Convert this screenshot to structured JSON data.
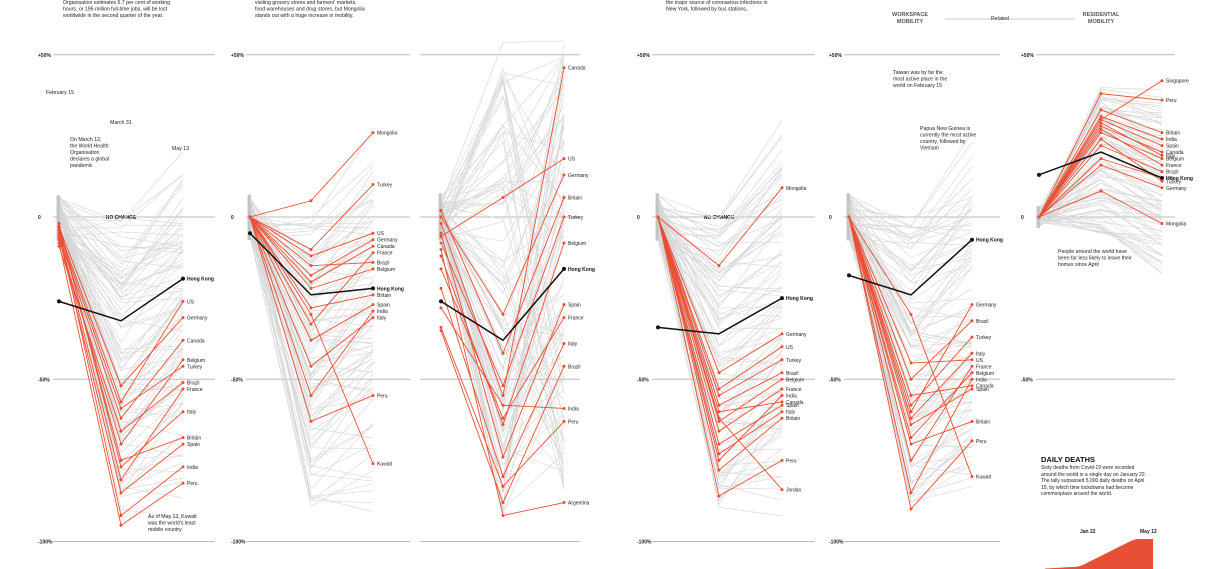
{
  "chart_data": [
    {
      "type": "line",
      "x": [
        "February 15",
        "March 31",
        "May 13"
      ],
      "ylim": [
        -100,
        50
      ],
      "yticks": [
        "+50%",
        "0",
        "-50%",
        "-100%"
      ],
      "zero_label": "NO CHANGE",
      "highlight": {
        "name": "Hong Kong",
        "values": [
          -26,
          -32,
          -19
        ]
      },
      "series": [
        {
          "name": "US",
          "values": [
            -4,
            -57,
            -26
          ]
        },
        {
          "name": "Germany",
          "values": [
            -3,
            -52,
            -31
          ]
        },
        {
          "name": "Canada",
          "values": [
            -6,
            -62,
            -38
          ]
        },
        {
          "name": "Belgium",
          "values": [
            -7,
            -70,
            -44
          ]
        },
        {
          "name": "Turkey",
          "values": [
            -5,
            -59,
            -46
          ]
        },
        {
          "name": "Brazil",
          "values": [
            -9,
            -66,
            -51
          ]
        },
        {
          "name": "France",
          "values": [
            -5,
            -81,
            -53
          ]
        },
        {
          "name": "Italy",
          "values": [
            -2,
            -77,
            -60
          ]
        },
        {
          "name": "Britain",
          "values": [
            -3,
            -75,
            -68
          ]
        },
        {
          "name": "Spain",
          "values": [
            -6,
            -85,
            -70
          ]
        },
        {
          "name": "India",
          "values": [
            -4,
            -92,
            -77
          ]
        },
        {
          "name": "Peru",
          "values": [
            -8,
            -95,
            -82
          ]
        }
      ]
    },
    {
      "type": "line",
      "x": [
        "February 15",
        "March 31",
        "May 13"
      ],
      "ylim": [
        -100,
        50
      ],
      "yticks": [
        "+50%",
        "0",
        "-50%",
        "-100%"
      ],
      "highlight": {
        "name": "Hong Kong",
        "values": [
          -5,
          -24,
          -22
        ]
      },
      "series": [
        {
          "name": "Mongolia",
          "values": [
            0,
            5,
            26
          ]
        },
        {
          "name": "Turkey",
          "values": [
            0,
            -10,
            10
          ]
        },
        {
          "name": "US",
          "values": [
            0,
            -12,
            -5
          ]
        },
        {
          "name": "Germany",
          "values": [
            0,
            -18,
            -7
          ]
        },
        {
          "name": "Canada",
          "values": [
            0,
            -20,
            -9
          ]
        },
        {
          "name": "France",
          "values": [
            0,
            -33,
            -11
          ]
        },
        {
          "name": "Brazil",
          "values": [
            0,
            -15,
            -14
          ]
        },
        {
          "name": "Belgium",
          "values": [
            0,
            -22,
            -16
          ]
        },
        {
          "name": "Britain",
          "values": [
            0,
            -28,
            -24
          ]
        },
        {
          "name": "Spain",
          "values": [
            0,
            -38,
            -27
          ]
        },
        {
          "name": "India",
          "values": [
            0,
            -55,
            -29
          ]
        },
        {
          "name": "Italy",
          "values": [
            0,
            -46,
            -31
          ]
        },
        {
          "name": "Peru",
          "values": [
            0,
            -63,
            -55
          ]
        },
        {
          "name": "Kuwait",
          "values": [
            0,
            -30,
            -76
          ]
        }
      ]
    },
    {
      "type": "line",
      "x": [
        "February 15",
        "March 31",
        "May 13"
      ],
      "ylim": [
        -100,
        50
      ],
      "highlight": {
        "name": "Hong Kong",
        "values": [
          -26,
          -38,
          -16
        ]
      },
      "series": [
        {
          "name": "Canada",
          "values": [
            -2,
            -55,
            46
          ]
        },
        {
          "name": "US",
          "values": [
            -6,
            6,
            18
          ]
        },
        {
          "name": "Germany",
          "values": [
            0,
            -30,
            13
          ]
        },
        {
          "name": "Britain",
          "values": [
            2,
            -42,
            6
          ]
        },
        {
          "name": "Turkey",
          "values": [
            -8,
            -52,
            0
          ]
        },
        {
          "name": "Belgium",
          "values": [
            -12,
            -64,
            -8
          ]
        },
        {
          "name": "Spain",
          "values": [
            -5,
            -74,
            -27
          ]
        },
        {
          "name": "France",
          "values": [
            -16,
            -62,
            -31
          ]
        },
        {
          "name": "Italy",
          "values": [
            -22,
            -80,
            -39
          ]
        },
        {
          "name": "Brazil",
          "values": [
            -35,
            -88,
            -46
          ]
        },
        {
          "name": "India",
          "values": [
            -28,
            -58,
            -59
          ]
        },
        {
          "name": "Peru",
          "values": [
            -34,
            -83,
            -63
          ]
        },
        {
          "name": "Argentina",
          "values": [
            -10,
            -92,
            -88
          ]
        }
      ]
    },
    {
      "type": "line",
      "x": [
        "February 15",
        "March 31",
        "May 13"
      ],
      "ylim": [
        -100,
        50
      ],
      "yticks": [
        "+50%",
        "0",
        "-50%",
        "-100%"
      ],
      "zero_label": "NO CHANGE",
      "highlight": {
        "name": "Hong Kong",
        "values": [
          -34,
          -36,
          -25
        ]
      },
      "series": [
        {
          "name": "Mongolia",
          "values": [
            0,
            -15,
            9
          ]
        },
        {
          "name": "Germany",
          "values": [
            0,
            -48,
            -36
          ]
        },
        {
          "name": "US",
          "values": [
            0,
            -53,
            -40
          ]
        },
        {
          "name": "Turkey",
          "values": [
            0,
            -55,
            -44
          ]
        },
        {
          "name": "Brazil",
          "values": [
            0,
            -58,
            -48
          ]
        },
        {
          "name": "Belgium",
          "values": [
            0,
            -63,
            -50
          ]
        },
        {
          "name": "France",
          "values": [
            0,
            -66,
            -53
          ]
        },
        {
          "name": "India",
          "values": [
            0,
            -75,
            -55
          ]
        },
        {
          "name": "Canada",
          "values": [
            0,
            -60,
            -57
          ]
        },
        {
          "name": "Spain",
          "values": [
            0,
            -70,
            -58
          ]
        },
        {
          "name": "Italy",
          "values": [
            0,
            -73,
            -60
          ]
        },
        {
          "name": "Britain",
          "values": [
            0,
            -78,
            -62
          ]
        },
        {
          "name": "Peru",
          "values": [
            0,
            -86,
            -75
          ]
        },
        {
          "name": "Jordan",
          "values": [
            0,
            -62,
            -84
          ]
        }
      ]
    },
    {
      "type": "line",
      "x": [
        "February 15",
        "March 31",
        "May 13"
      ],
      "ylim": [
        -100,
        50
      ],
      "yticks": [
        "+50%",
        "0",
        "-50%",
        "-100%"
      ],
      "highlight": {
        "name": "Hong Kong",
        "values": [
          -18,
          -24,
          -7
        ]
      },
      "series": [
        {
          "name": "Germany",
          "values": [
            0,
            -60,
            -27
          ]
        },
        {
          "name": "Brazil",
          "values": [
            0,
            -50,
            -32
          ]
        },
        {
          "name": "Turkey",
          "values": [
            0,
            -58,
            -37
          ]
        },
        {
          "name": "Italy",
          "values": [
            0,
            -62,
            -42
          ]
        },
        {
          "name": "US",
          "values": [
            0,
            -45,
            -44
          ]
        },
        {
          "name": "France",
          "values": [
            0,
            -75,
            -46
          ]
        },
        {
          "name": "Belgium",
          "values": [
            0,
            -68,
            -48
          ]
        },
        {
          "name": "India",
          "values": [
            0,
            -85,
            -50
          ]
        },
        {
          "name": "Canada",
          "values": [
            0,
            -55,
            -52
          ]
        },
        {
          "name": "Spain",
          "values": [
            0,
            -64,
            -53
          ]
        },
        {
          "name": "Britain",
          "values": [
            0,
            -70,
            -63
          ]
        },
        {
          "name": "Peru",
          "values": [
            0,
            -90,
            -69
          ]
        },
        {
          "name": "Kuwait",
          "values": [
            0,
            -30,
            -80
          ]
        }
      ]
    },
    {
      "type": "line",
      "x": [
        "February 15",
        "March 31",
        "May 13"
      ],
      "ylim": [
        -100,
        50
      ],
      "yticks": [
        "+50%",
        "0",
        "-50%"
      ],
      "highlight": {
        "name": "Hong Kong",
        "values": [
          13,
          20,
          12
        ]
      },
      "series": [
        {
          "name": "Peru",
          "values": [
            0,
            38,
            36
          ]
        },
        {
          "name": "Britain",
          "values": [
            0,
            33,
            26
          ]
        },
        {
          "name": "India",
          "values": [
            0,
            31,
            24
          ]
        },
        {
          "name": "Spain",
          "values": [
            0,
            30,
            22
          ]
        },
        {
          "name": "Canada",
          "values": [
            0,
            28,
            20
          ]
        },
        {
          "name": "Italy",
          "values": [
            0,
            29,
            19
          ]
        },
        {
          "name": "Belgium",
          "values": [
            0,
            26,
            18
          ]
        },
        {
          "name": "France",
          "values": [
            0,
            27,
            16
          ]
        },
        {
          "name": "Brazil",
          "values": [
            0,
            22,
            14
          ]
        },
        {
          "name": "US",
          "values": [
            0,
            18,
            12
          ]
        },
        {
          "name": "Turkey",
          "values": [
            0,
            24,
            11
          ]
        },
        {
          "name": "Germany",
          "values": [
            0,
            16,
            9
          ]
        },
        {
          "name": "Singapore",
          "values": [
            0,
            30,
            42
          ]
        },
        {
          "name": "Mongolia",
          "values": [
            0,
            8,
            -2
          ]
        }
      ]
    }
  ],
  "header_texts": {
    "p1": [
      "Organisation estimates 6.7 per cent of working",
      "hours, or 195 million full-time jobs, will be lost",
      "worldwide in the second quarter of the year."
    ],
    "p2": [
      "visiting grocery stores and farmers' markets,",
      "food warehouses and drug stores, but Mongolia",
      "stands out with a huge increase in mobility."
    ],
    "p4": [
      "the major source of coronavirus infections in",
      "New York, followed by bus stations."
    ],
    "mobility": {
      "left": "WORKSPACE",
      "left2": "MOBILITY",
      "mid": "Related",
      "right": "RESIDENTIAL",
      "right2": "MOBILITY"
    }
  },
  "annotations": {
    "feb15": "February 15",
    "mar31": "March 31",
    "may13": "May 13",
    "who": [
      "On March 12,",
      "the World Health",
      "Organisation",
      "declares a global",
      "pandemic"
    ],
    "kuwait_note": [
      "As of May 13, Kuwait",
      "was the world's least",
      "mobile country"
    ],
    "taiwan": [
      "Taiwan was by far the",
      "most active place in the",
      "world on February 15"
    ],
    "png": [
      "Papua New Guinea is",
      "currently the most active",
      "country, followed by",
      "Vietnam"
    ],
    "residential": [
      "People around the world have",
      "been far less likely to leave their",
      "homes since April"
    ]
  },
  "daily_deaths": {
    "title": "DAILY DEATHS",
    "text": "Sixty deaths from Covid-19 were recorded around the world in a single day on January 22. The tally surpassed 5,000 daily deaths on April 15, by which time lockdowns had become commonplace around the world.",
    "x_start": "Jan 22",
    "x_end": "May 13",
    "color": "#e94f35"
  },
  "colors": {
    "highlight": "#111111",
    "series": "#e94f35",
    "background_lines": "#d6d6d6",
    "axis": "#bbbbbb"
  }
}
